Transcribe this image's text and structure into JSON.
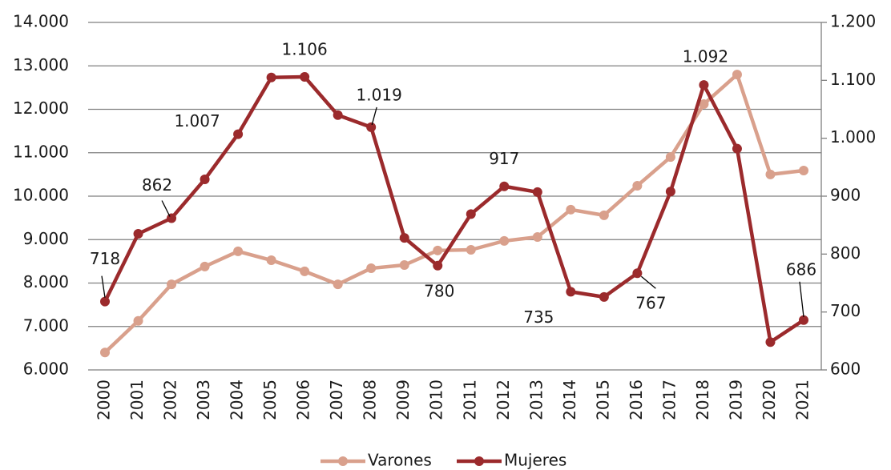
{
  "chart_data": {
    "type": "line",
    "categories": [
      "2000",
      "2001",
      "2002",
      "2003",
      "2004",
      "2005",
      "2006",
      "2007",
      "2008",
      "2009",
      "2010",
      "2011",
      "2012",
      "2013",
      "2014",
      "2015",
      "2016",
      "2017",
      "2018",
      "2019",
      "2020",
      "2021"
    ],
    "series": [
      {
        "name": "Varones",
        "color": "#d9a08c",
        "axis": "y",
        "values": [
          6400,
          7130,
          7970,
          8380,
          8730,
          8525,
          8270,
          7970,
          8340,
          8415,
          8750,
          8765,
          8970,
          9060,
          9690,
          9560,
          10240,
          10900,
          12120,
          12800,
          10500,
          10590
        ]
      },
      {
        "name": "Mujeres",
        "color": "#9b2a2c",
        "axis": "y2",
        "values": [
          718,
          835,
          862,
          929,
          1007,
          1105,
          1106,
          1040,
          1019,
          828,
          780,
          869,
          917,
          907,
          735,
          726,
          767,
          908,
          1092,
          982,
          648,
          686
        ],
        "value_labels": [
          "718",
          null,
          "862",
          null,
          "1.007",
          null,
          "1.106",
          null,
          "1.019",
          null,
          "780",
          null,
          "917",
          null,
          "735",
          null,
          "767",
          null,
          "1.092",
          null,
          null,
          "686"
        ]
      }
    ],
    "ylim": [
      6000,
      14000
    ],
    "yticks": [
      {
        "value": 6000,
        "label": "6.000"
      },
      {
        "value": 7000,
        "label": "7.000"
      },
      {
        "value": 8000,
        "label": "8.000"
      },
      {
        "value": 9000,
        "label": "9.000"
      },
      {
        "value": 10000,
        "label": "10.000"
      },
      {
        "value": 11000,
        "label": "11.000"
      },
      {
        "value": 12000,
        "label": "12.000"
      },
      {
        "value": 13000,
        "label": "13.000"
      },
      {
        "value": 14000,
        "label": "14.000"
      }
    ],
    "y2lim": [
      600,
      1200
    ],
    "y2ticks": [
      600,
      700,
      800,
      900,
      {
        "value": 1000,
        "label": "1.000"
      },
      {
        "value": 1100,
        "label": "1.100"
      },
      {
        "value": 1200,
        "label": "1.200"
      }
    ],
    "grid": true,
    "legend": "bottom"
  }
}
